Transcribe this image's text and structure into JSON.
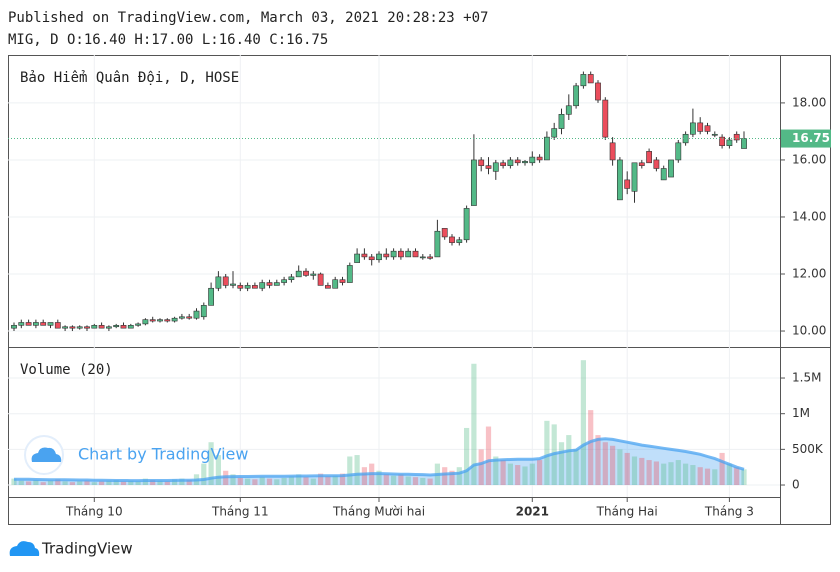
{
  "chart_data": {
    "type": "candlestick",
    "published": "Published on TradingView.com, March 03, 2021 20:28:23 +07",
    "legend": "MIG, D O:16.40 H:17.00 L:16.40 C:16.75",
    "title": "Bảo Hiểm Quân Đội, D, HOSE",
    "volume_title": "Volume (20)",
    "watermark": "Chart by TradingView",
    "brand": "TradingView",
    "up_color": "#53b987",
    "down_color": "#eb4d5c",
    "ma_color": "#4aa3f0",
    "last_price": 16.75,
    "ylim": [
      9.44,
      19.68
    ],
    "yticks": [
      {
        "value": 10,
        "label": "10.00"
      },
      {
        "value": 12,
        "label": "12.00"
      },
      {
        "value": 14,
        "label": "14.00"
      },
      {
        "value": 16,
        "label": "16.00"
      },
      {
        "value": 18,
        "label": "18.00"
      }
    ],
    "y2lim": [
      -168000,
      1935000
    ],
    "y2ticks": [
      0,
      {
        "value": 500000,
        "label": "500K"
      },
      {
        "value": 1000000,
        "label": "1M"
      },
      {
        "value": 1500000,
        "label": "1.5M"
      }
    ],
    "xticks": [
      {
        "value": 11,
        "label": "Tháng 10"
      },
      {
        "value": 31,
        "label": "Tháng 11"
      },
      {
        "value": 50,
        "label": "Tháng Mười hai"
      },
      {
        "value": 71,
        "label": "2021"
      },
      {
        "value": 84,
        "label": "Tháng Hai"
      },
      {
        "value": 98,
        "label": "Tháng 3"
      }
    ],
    "grid": true,
    "ohlc": [
      [
        10.1,
        10.3,
        10.0,
        10.2
      ],
      [
        10.2,
        10.4,
        10.1,
        10.3
      ],
      [
        10.3,
        10.4,
        10.2,
        10.2
      ],
      [
        10.2,
        10.4,
        10.1,
        10.3
      ],
      [
        10.3,
        10.4,
        10.2,
        10.2
      ],
      [
        10.2,
        10.3,
        10.1,
        10.3
      ],
      [
        10.3,
        10.4,
        10.1,
        10.1
      ],
      [
        10.1,
        10.2,
        10.0,
        10.15
      ],
      [
        10.15,
        10.2,
        10.0,
        10.1
      ],
      [
        10.1,
        10.2,
        10.05,
        10.15
      ],
      [
        10.15,
        10.2,
        10.0,
        10.1
      ],
      [
        10.1,
        10.25,
        10.1,
        10.2
      ],
      [
        10.2,
        10.3,
        10.1,
        10.1
      ],
      [
        10.1,
        10.2,
        10.0,
        10.15
      ],
      [
        10.15,
        10.25,
        10.1,
        10.2
      ],
      [
        10.2,
        10.3,
        10.1,
        10.1
      ],
      [
        10.1,
        10.25,
        10.1,
        10.2
      ],
      [
        10.2,
        10.3,
        10.15,
        10.25
      ],
      [
        10.25,
        10.45,
        10.2,
        10.4
      ],
      [
        10.4,
        10.5,
        10.3,
        10.35
      ],
      [
        10.35,
        10.45,
        10.3,
        10.4
      ],
      [
        10.4,
        10.45,
        10.3,
        10.35
      ],
      [
        10.35,
        10.5,
        10.3,
        10.45
      ],
      [
        10.45,
        10.6,
        10.4,
        10.5
      ],
      [
        10.5,
        10.6,
        10.4,
        10.45
      ],
      [
        10.45,
        10.8,
        10.4,
        10.7
      ],
      [
        10.5,
        11.0,
        10.4,
        10.9
      ],
      [
        10.9,
        11.7,
        10.9,
        11.5
      ],
      [
        11.5,
        12.1,
        11.4,
        11.9
      ],
      [
        11.9,
        12.0,
        11.5,
        11.6
      ],
      [
        11.6,
        12.1,
        11.5,
        11.65
      ],
      [
        11.6,
        11.7,
        11.4,
        11.5
      ],
      [
        11.5,
        11.7,
        11.4,
        11.6
      ],
      [
        11.6,
        11.7,
        11.5,
        11.5
      ],
      [
        11.5,
        11.8,
        11.4,
        11.7
      ],
      [
        11.7,
        11.8,
        11.5,
        11.6
      ],
      [
        11.6,
        11.8,
        11.6,
        11.7
      ],
      [
        11.7,
        11.9,
        11.6,
        11.8
      ],
      [
        11.8,
        12.0,
        11.7,
        11.9
      ],
      [
        11.9,
        12.3,
        11.9,
        12.1
      ],
      [
        12.1,
        12.2,
        11.9,
        11.95
      ],
      [
        11.95,
        12.1,
        11.8,
        12.0
      ],
      [
        12.0,
        12.05,
        11.6,
        11.6
      ],
      [
        11.6,
        11.7,
        11.5,
        11.5
      ],
      [
        11.5,
        11.9,
        11.5,
        11.8
      ],
      [
        11.8,
        11.9,
        11.6,
        11.7
      ],
      [
        11.7,
        12.4,
        11.7,
        12.3
      ],
      [
        12.4,
        12.9,
        12.4,
        12.7
      ],
      [
        12.7,
        12.9,
        12.5,
        12.6
      ],
      [
        12.6,
        12.7,
        12.3,
        12.5
      ],
      [
        12.5,
        12.8,
        12.4,
        12.7
      ],
      [
        12.7,
        12.9,
        12.5,
        12.6
      ],
      [
        12.6,
        12.9,
        12.5,
        12.8
      ],
      [
        12.8,
        12.9,
        12.5,
        12.6
      ],
      [
        12.6,
        12.9,
        12.6,
        12.8
      ],
      [
        12.8,
        12.9,
        12.6,
        12.6
      ],
      [
        12.6,
        12.7,
        12.5,
        12.6
      ],
      [
        12.6,
        12.7,
        12.5,
        12.55
      ],
      [
        12.6,
        13.9,
        12.6,
        13.5
      ],
      [
        13.6,
        13.6,
        13.2,
        13.3
      ],
      [
        13.3,
        13.4,
        13.0,
        13.1
      ],
      [
        13.1,
        13.3,
        13.0,
        13.2
      ],
      [
        13.2,
        14.4,
        13.1,
        14.3
      ],
      [
        14.4,
        16.9,
        14.4,
        16.0
      ],
      [
        16.0,
        16.1,
        15.6,
        15.8
      ],
      [
        15.8,
        16.1,
        15.5,
        15.7
      ],
      [
        15.6,
        16.0,
        15.3,
        15.9
      ],
      [
        15.9,
        16.0,
        15.7,
        15.8
      ],
      [
        15.8,
        16.1,
        15.7,
        16.0
      ],
      [
        16.0,
        16.1,
        15.8,
        15.9
      ],
      [
        15.9,
        16.0,
        15.8,
        15.95
      ],
      [
        15.9,
        16.3,
        15.8,
        16.1
      ],
      [
        16.1,
        16.2,
        15.9,
        16.0
      ],
      [
        16.0,
        17.0,
        16.0,
        16.8
      ],
      [
        16.8,
        17.3,
        16.7,
        17.1
      ],
      [
        17.1,
        17.8,
        16.9,
        17.6
      ],
      [
        17.6,
        18.3,
        17.4,
        17.9
      ],
      [
        17.9,
        18.7,
        17.8,
        18.6
      ],
      [
        18.6,
        19.1,
        18.5,
        19.0
      ],
      [
        19.0,
        19.1,
        18.7,
        18.7
      ],
      [
        18.7,
        18.8,
        18.0,
        18.1
      ],
      [
        18.1,
        18.2,
        16.7,
        16.8
      ],
      [
        16.6,
        16.8,
        15.8,
        16.0
      ],
      [
        14.6,
        16.1,
        14.6,
        16.0
      ],
      [
        15.3,
        15.6,
        14.8,
        15.0
      ],
      [
        14.9,
        15.9,
        14.5,
        15.9
      ],
      [
        15.9,
        16.0,
        15.7,
        15.8
      ],
      [
        16.3,
        16.4,
        15.9,
        15.9
      ],
      [
        16.0,
        16.1,
        15.6,
        15.7
      ],
      [
        15.3,
        15.8,
        15.3,
        15.7
      ],
      [
        15.4,
        16.0,
        15.4,
        16.0
      ],
      [
        16.0,
        16.7,
        15.9,
        16.6
      ],
      [
        16.6,
        17.0,
        16.5,
        16.9
      ],
      [
        16.9,
        17.8,
        16.8,
        17.3
      ],
      [
        17.3,
        17.5,
        16.9,
        17.0
      ],
      [
        17.2,
        17.3,
        16.9,
        17.0
      ],
      [
        16.9,
        17.0,
        16.8,
        16.9
      ],
      [
        16.8,
        16.9,
        16.4,
        16.5
      ],
      [
        16.5,
        16.8,
        16.4,
        16.7
      ],
      [
        16.9,
        17.0,
        16.6,
        16.7
      ],
      [
        16.4,
        17.0,
        16.4,
        16.75
      ]
    ],
    "volume": [
      90000,
      60000,
      50000,
      70000,
      40000,
      60000,
      80000,
      50000,
      40000,
      50000,
      60000,
      40000,
      50000,
      60000,
      70000,
      50000,
      60000,
      50000,
      90000,
      70000,
      60000,
      50000,
      80000,
      90000,
      70000,
      150000,
      300000,
      600000,
      420000,
      200000,
      150000,
      100000,
      90000,
      80000,
      110000,
      90000,
      80000,
      100000,
      120000,
      150000,
      110000,
      90000,
      160000,
      120000,
      130000,
      160000,
      400000,
      420000,
      250000,
      300000,
      200000,
      150000,
      130000,
      150000,
      120000,
      110000,
      100000,
      90000,
      300000,
      250000,
      200000,
      250000,
      800000,
      1700000,
      500000,
      820000,
      400000,
      350000,
      300000,
      280000,
      260000,
      300000,
      350000,
      900000,
      850000,
      600000,
      700000,
      500000,
      1750000,
      1050000,
      700000,
      600000,
      550000,
      500000,
      450000,
      400000,
      380000,
      350000,
      330000,
      300000,
      320000,
      350000,
      300000,
      280000,
      250000,
      230000,
      220000,
      450000,
      300000,
      250000,
      220000
    ],
    "volume_ma": [
      80000,
      80000,
      80000,
      78000,
      76000,
      75000,
      75000,
      74000,
      72000,
      70000,
      70000,
      68000,
      66000,
      65000,
      64000,
      63000,
      62000,
      62000,
      63000,
      64000,
      64000,
      64000,
      65000,
      66000,
      67000,
      70000,
      78000,
      95000,
      110000,
      115000,
      118000,
      120000,
      120000,
      121000,
      122000,
      122000,
      123000,
      124000,
      125000,
      126000,
      127000,
      128000,
      129000,
      130000,
      131000,
      132000,
      140000,
      150000,
      155000,
      160000,
      160000,
      158000,
      155000,
      152000,
      150000,
      148000,
      146000,
      140000,
      148000,
      155000,
      160000,
      165000,
      200000,
      280000,
      300000,
      340000,
      350000,
      355000,
      358000,
      360000,
      360000,
      362000,
      370000,
      410000,
      440000,
      460000,
      480000,
      490000,
      560000,
      610000,
      640000,
      650000,
      640000,
      620000,
      600000,
      580000,
      560000,
      545000,
      530000,
      515000,
      500000,
      485000,
      470000,
      450000,
      430000,
      400000,
      370000,
      330000,
      290000,
      250000,
      220000
    ]
  }
}
